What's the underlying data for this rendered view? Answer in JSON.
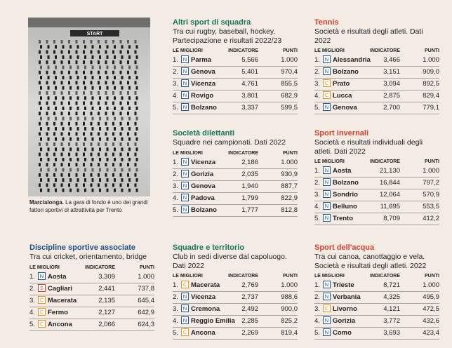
{
  "photo": {
    "label": "START",
    "caption_bold": "Marcialonga.",
    "caption": " La gara di fondo è uno dei grandi fattori sportivi di attrattività per Trento"
  },
  "panels": [
    {
      "title": "Altri sport di squadra",
      "color": "#17785a",
      "subtitle": "Tra cui rugby, baseball, hockey. Partecipazione e risultati 2022/23",
      "columns": [
        "LE MIGLIORI",
        "INDICATORE",
        "PUNTI"
      ],
      "rows": [
        [
          "1.",
          "N",
          "Parma",
          "5,566",
          "1.000"
        ],
        [
          "2.",
          "N",
          "Genova",
          "5,401",
          "970,4"
        ],
        [
          "3.",
          "N",
          "Vicenza",
          "4,761",
          "855,5"
        ],
        [
          "4.",
          "N",
          "Rovigo",
          "3,801",
          "682,9"
        ],
        [
          "5.",
          "N",
          "Bolzano",
          "3,337",
          "599,5"
        ]
      ]
    },
    {
      "title": "Tennis",
      "color": "#d5412d",
      "subtitle": "Società e risultati degli atleti. Dati 2022",
      "columns": [
        "LE MIGLIORI",
        "INDICATORE",
        "PUNTI"
      ],
      "rows": [
        [
          "1.",
          "N",
          "Alessandria",
          "3,466",
          "1.000"
        ],
        [
          "2.",
          "N",
          "Bolzano",
          "3,151",
          "909,0"
        ],
        [
          "3.",
          "C",
          "Prato",
          "3,094",
          "892,5"
        ],
        [
          "4.",
          "C",
          "Lucca",
          "2,875",
          "829,4"
        ],
        [
          "5.",
          "N",
          "Genova",
          "2,700",
          "779,1"
        ]
      ]
    },
    {
      "title": "Società dilettanti",
      "color": "#17785a",
      "subtitle": "Squadre nei campionati. Dati 2022",
      "columns": [
        "LE MIGLIORI",
        "INDICATORE",
        "PUNTI"
      ],
      "rows": [
        [
          "1.",
          "N",
          "Vicenza",
          "2,186",
          "1.000"
        ],
        [
          "2.",
          "N",
          "Gorizia",
          "2,035",
          "930,9"
        ],
        [
          "3.",
          "N",
          "Genova",
          "1,940",
          "887,7"
        ],
        [
          "4.",
          "N",
          "Padova",
          "1,799",
          "822,9"
        ],
        [
          "5.",
          "N",
          "Bolzano",
          "1,777",
          "812,8"
        ]
      ]
    },
    {
      "title": "Sport invernali",
      "color": "#d5412d",
      "subtitle": "Società e risultati individuali degli atleti. Dati 2022",
      "columns": [
        "LE MIGLIORI",
        "INDICATORE",
        "PUNTI"
      ],
      "rows": [
        [
          "1.",
          "N",
          "Aosta",
          "21,130",
          "1.000"
        ],
        [
          "2.",
          "N",
          "Bolzano",
          "16,844",
          "797,2"
        ],
        [
          "3.",
          "N",
          "Sondrio",
          "12,064",
          "570,9"
        ],
        [
          "4.",
          "N",
          "Belluno",
          "11,695",
          "553,5"
        ],
        [
          "5.",
          "N",
          "Trento",
          "8,709",
          "412,2"
        ]
      ]
    },
    {
      "title": "Discipline sportive associate",
      "color": "#1d4f85",
      "subtitle": "Tra cui cricket, orientamento, bridge",
      "columns": [
        "LE MIGLIORI",
        "INDICATORE",
        "PUNTI"
      ],
      "rows": [
        [
          "1.",
          "N",
          "Aosta",
          "3,309",
          "1.000"
        ],
        [
          "2.",
          "S",
          "Cagliari",
          "2,441",
          "737,8"
        ],
        [
          "3.",
          "C",
          "Macerata",
          "2,135",
          "645,4"
        ],
        [
          "4.",
          "C",
          "Fermo",
          "2,127",
          "642,9"
        ],
        [
          "5.",
          "C",
          "Ancona",
          "2,066",
          "624,3"
        ]
      ]
    },
    {
      "title": "Squadre e territorio",
      "color": "#17785a",
      "subtitle": "Club in sedi diverse dal capoluogo. Dati 2022",
      "columns": [
        "LE MIGLIORI",
        "INDICATORE",
        "PUNTI"
      ],
      "rows": [
        [
          "1.",
          "C",
          "Macerata",
          "2,769",
          "1.000"
        ],
        [
          "2.",
          "N",
          "Vicenza",
          "2,737",
          "988,6"
        ],
        [
          "3.",
          "N",
          "Cremona",
          "2,492",
          "900,0"
        ],
        [
          "4.",
          "N",
          "Reggio Emilia",
          "2,285",
          "825,2"
        ],
        [
          "5.",
          "C",
          "Ancona",
          "2,269",
          "819,4"
        ]
      ]
    },
    {
      "title": "Sport dell'acqua",
      "color": "#d5412d",
      "subtitle": "Tra cui canoa, canottaggio e vela. Società e risultati degli atleti. 2022",
      "columns": [
        "LE MIGLIORI",
        "INDICATORE",
        "PUNTI"
      ],
      "rows": [
        [
          "1.",
          "N",
          "Trieste",
          "8,721",
          "1.000"
        ],
        [
          "2.",
          "N",
          "Verbania",
          "4,325",
          "495,9"
        ],
        [
          "3.",
          "C",
          "Livorno",
          "4,121",
          "472,5"
        ],
        [
          "4.",
          "N",
          "Gorizia",
          "3,772",
          "432,6"
        ],
        [
          "5.",
          "N",
          "Como",
          "3,693",
          "423,4"
        ]
      ]
    }
  ]
}
